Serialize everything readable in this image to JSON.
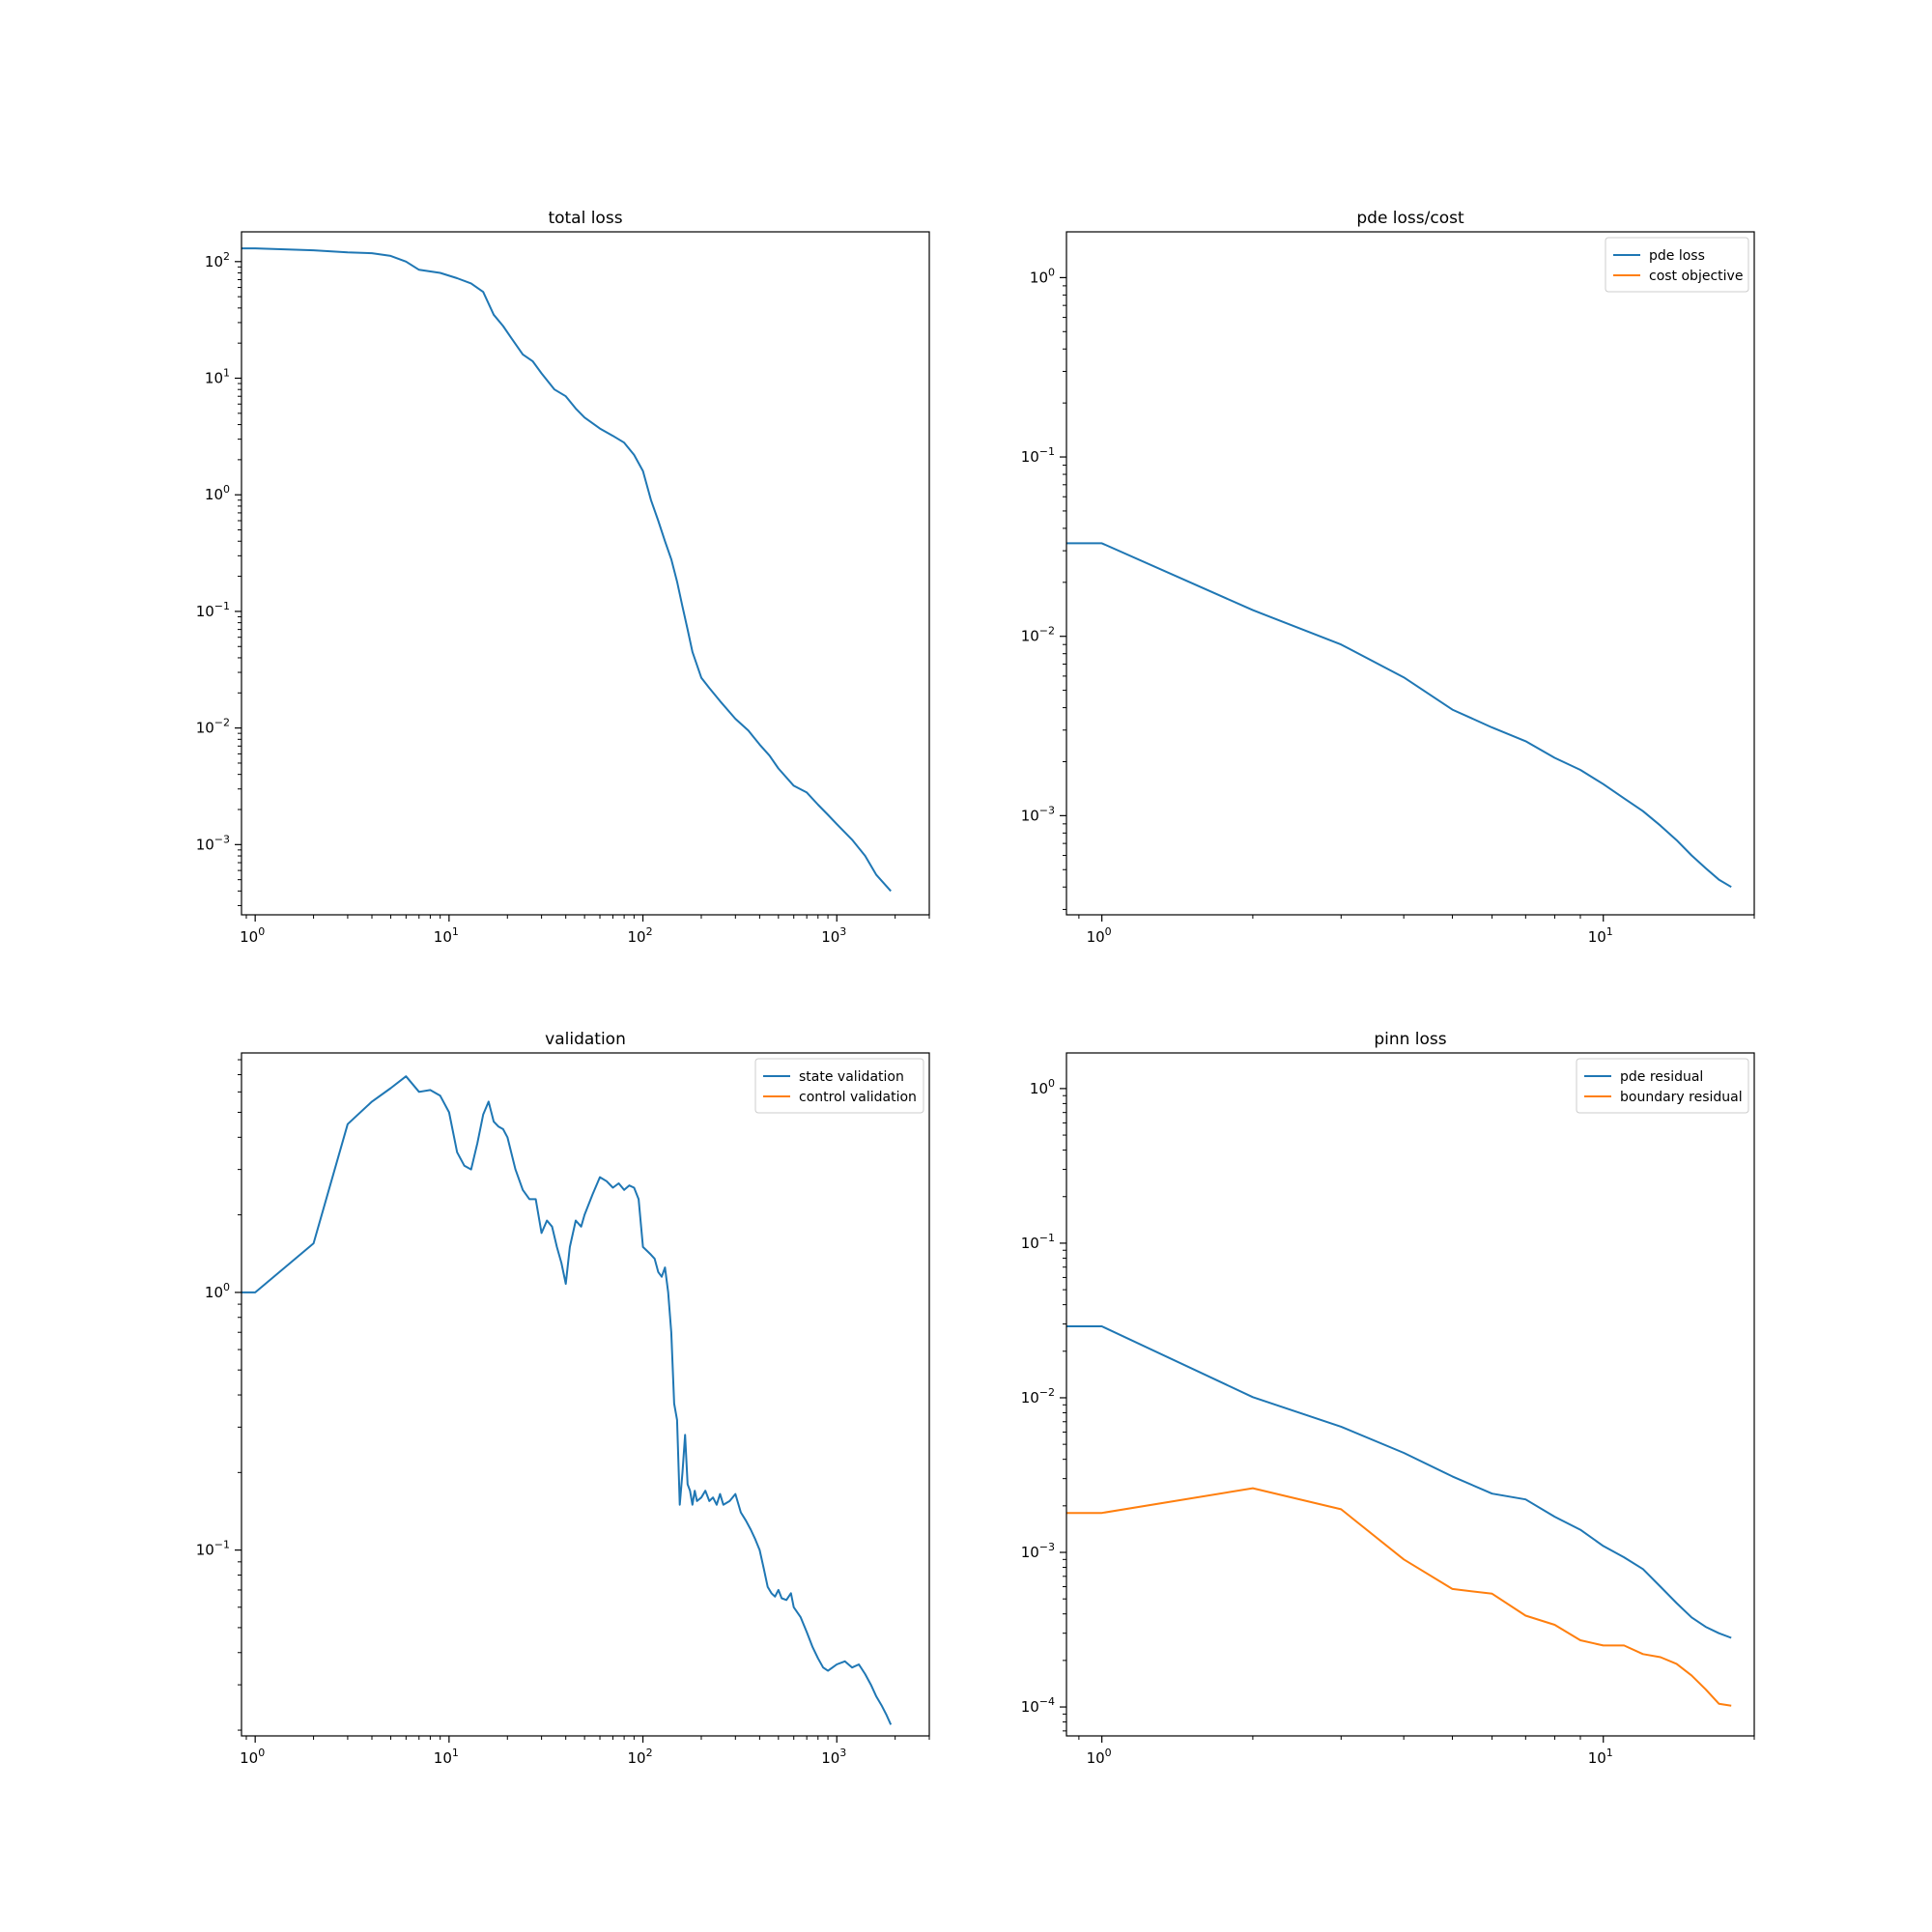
{
  "colors": {
    "series_1": "#1f77b4",
    "series_2": "#ff7f0e",
    "axes": "#000000",
    "legend_border": "#cccccc"
  },
  "chart_data": [
    {
      "type": "line",
      "title": "total loss",
      "xscale": "log",
      "yscale": "log",
      "xlim": [
        0.85,
        3000
      ],
      "ylim": [
        0.00025,
        180
      ],
      "x_ticks": [
        1,
        10,
        100,
        1000
      ],
      "y_ticks": [
        0.001,
        0.01,
        0.1,
        1,
        10,
        100
      ],
      "legend": null,
      "series": [
        {
          "x": [
            0.85,
            1,
            2,
            3,
            4,
            5,
            6,
            7,
            9,
            11,
            13,
            15,
            17,
            19,
            21,
            24,
            27,
            30,
            35,
            40,
            45,
            50,
            60,
            70,
            80,
            90,
            100,
            110,
            120,
            130,
            140,
            150,
            160,
            170,
            180,
            200,
            220,
            250,
            300,
            350,
            400,
            450,
            500,
            600,
            700,
            800,
            900,
            1000,
            1200,
            1400,
            1600,
            1900
          ],
          "y": [
            130,
            130,
            125,
            120,
            118,
            112,
            100,
            85,
            80,
            72,
            65,
            55,
            35,
            28,
            22,
            16,
            14,
            11,
            8,
            7,
            5.5,
            4.6,
            3.7,
            3.2,
            2.8,
            2.2,
            1.6,
            0.9,
            0.6,
            0.4,
            0.28,
            0.18,
            0.11,
            0.07,
            0.045,
            0.027,
            0.022,
            0.017,
            0.012,
            0.0095,
            0.0072,
            0.0058,
            0.0045,
            0.0032,
            0.0028,
            0.0022,
            0.0018,
            0.0015,
            0.0011,
            0.0008,
            0.00055,
            0.0004
          ]
        }
      ]
    },
    {
      "type": "line",
      "title": "pde loss/cost",
      "xscale": "log",
      "yscale": "log",
      "xlim": [
        0.85,
        20
      ],
      "ylim": [
        0.00028,
        1.8
      ],
      "x_ticks": [
        1,
        10
      ],
      "y_ticks": [
        0.001,
        0.01,
        0.1,
        1
      ],
      "legend": "top-right",
      "series": [
        {
          "name": "pde loss",
          "x": [
            0.85,
            1,
            2,
            3,
            4,
            5,
            6,
            7,
            8,
            9,
            10,
            11,
            12,
            13,
            14,
            15,
            16,
            17,
            18
          ],
          "y": [
            0.033,
            0.033,
            0.014,
            0.009,
            0.0059,
            0.0039,
            0.0031,
            0.0026,
            0.0021,
            0.0018,
            0.0015,
            0.00125,
            0.00106,
            0.00088,
            0.00073,
            0.0006,
            0.00051,
            0.00044,
            0.0004
          ]
        },
        {
          "name": "cost objective",
          "x": [],
          "y": []
        }
      ]
    },
    {
      "type": "line",
      "title": "validation",
      "xscale": "log",
      "yscale": "log",
      "xlim": [
        0.85,
        3000
      ],
      "ylim": [
        0.019,
        8.5
      ],
      "x_ticks": [
        1,
        10,
        100,
        1000
      ],
      "y_ticks": [
        0.1,
        1
      ],
      "legend": "top-right",
      "series": [
        {
          "name": "state validation",
          "x": [
            0.85,
            1,
            2,
            3,
            4,
            5,
            6,
            7,
            8,
            9,
            10,
            11,
            12,
            13,
            14,
            15,
            16,
            17,
            18,
            19,
            20,
            22,
            24,
            26,
            28,
            30,
            32,
            34,
            36,
            38,
            40,
            42,
            45,
            48,
            50,
            55,
            60,
            65,
            70,
            75,
            80,
            85,
            90,
            95,
            100,
            105,
            110,
            115,
            120,
            125,
            130,
            135,
            140,
            145,
            150,
            155,
            160,
            165,
            170,
            175,
            180,
            185,
            190,
            200,
            210,
            220,
            230,
            240,
            250,
            260,
            280,
            300,
            320,
            340,
            360,
            380,
            400,
            420,
            440,
            460,
            480,
            500,
            520,
            550,
            580,
            600,
            650,
            700,
            750,
            800,
            850,
            900,
            950,
            1000,
            1100,
            1200,
            1300,
            1400,
            1500,
            1600,
            1700,
            1800,
            1900
          ],
          "y": [
            1.0,
            1.0,
            1.55,
            4.5,
            5.5,
            6.2,
            6.9,
            6.0,
            6.1,
            5.8,
            5.0,
            3.5,
            3.1,
            3.0,
            3.8,
            4.9,
            5.5,
            4.6,
            4.4,
            4.3,
            4.0,
            3.0,
            2.5,
            2.3,
            2.3,
            1.7,
            1.9,
            1.8,
            1.5,
            1.3,
            1.08,
            1.5,
            1.9,
            1.8,
            2.0,
            2.4,
            2.8,
            2.7,
            2.55,
            2.65,
            2.5,
            2.6,
            2.55,
            2.3,
            1.5,
            1.45,
            1.4,
            1.35,
            1.2,
            1.15,
            1.25,
            1.0,
            0.7,
            0.37,
            0.32,
            0.15,
            0.2,
            0.28,
            0.18,
            0.17,
            0.15,
            0.17,
            0.155,
            0.16,
            0.17,
            0.155,
            0.16,
            0.15,
            0.165,
            0.15,
            0.155,
            0.165,
            0.14,
            0.13,
            0.12,
            0.11,
            0.1,
            0.085,
            0.072,
            0.068,
            0.066,
            0.07,
            0.065,
            0.064,
            0.068,
            0.06,
            0.055,
            0.048,
            0.042,
            0.038,
            0.035,
            0.034,
            0.035,
            0.036,
            0.037,
            0.035,
            0.036,
            0.033,
            0.03,
            0.027,
            0.025,
            0.023,
            0.021
          ]
        },
        {
          "name": "control validation",
          "x": [],
          "y": []
        }
      ]
    },
    {
      "type": "line",
      "title": "pinn loss",
      "xscale": "log",
      "yscale": "log",
      "xlim": [
        0.85,
        20
      ],
      "ylim": [
        6.5e-05,
        1.7
      ],
      "x_ticks": [
        1,
        10
      ],
      "y_ticks": [
        0.0001,
        0.001,
        0.01,
        0.1,
        1
      ],
      "legend": "top-right",
      "series": [
        {
          "name": "pde residual",
          "x": [
            0.85,
            1,
            2,
            3,
            4,
            5,
            6,
            7,
            8,
            9,
            10,
            11,
            12,
            13,
            14,
            15,
            16,
            17,
            18
          ],
          "y": [
            0.029,
            0.029,
            0.0101,
            0.0065,
            0.0044,
            0.0031,
            0.0024,
            0.0022,
            0.0017,
            0.0014,
            0.0011,
            0.00093,
            0.00078,
            0.0006,
            0.00047,
            0.00038,
            0.00033,
            0.0003,
            0.00028
          ]
        },
        {
          "name": "boundary residual",
          "x": [
            0.85,
            1,
            2,
            3,
            4,
            5,
            6,
            7,
            8,
            9,
            10,
            11,
            12,
            13,
            14,
            15,
            16,
            17,
            18
          ],
          "y": [
            0.0018,
            0.0018,
            0.0026,
            0.0019,
            0.0009,
            0.00058,
            0.00054,
            0.00039,
            0.00034,
            0.00027,
            0.00025,
            0.00025,
            0.00022,
            0.00021,
            0.00019,
            0.00016,
            0.00013,
            0.000105,
            0.000102
          ]
        }
      ]
    }
  ]
}
